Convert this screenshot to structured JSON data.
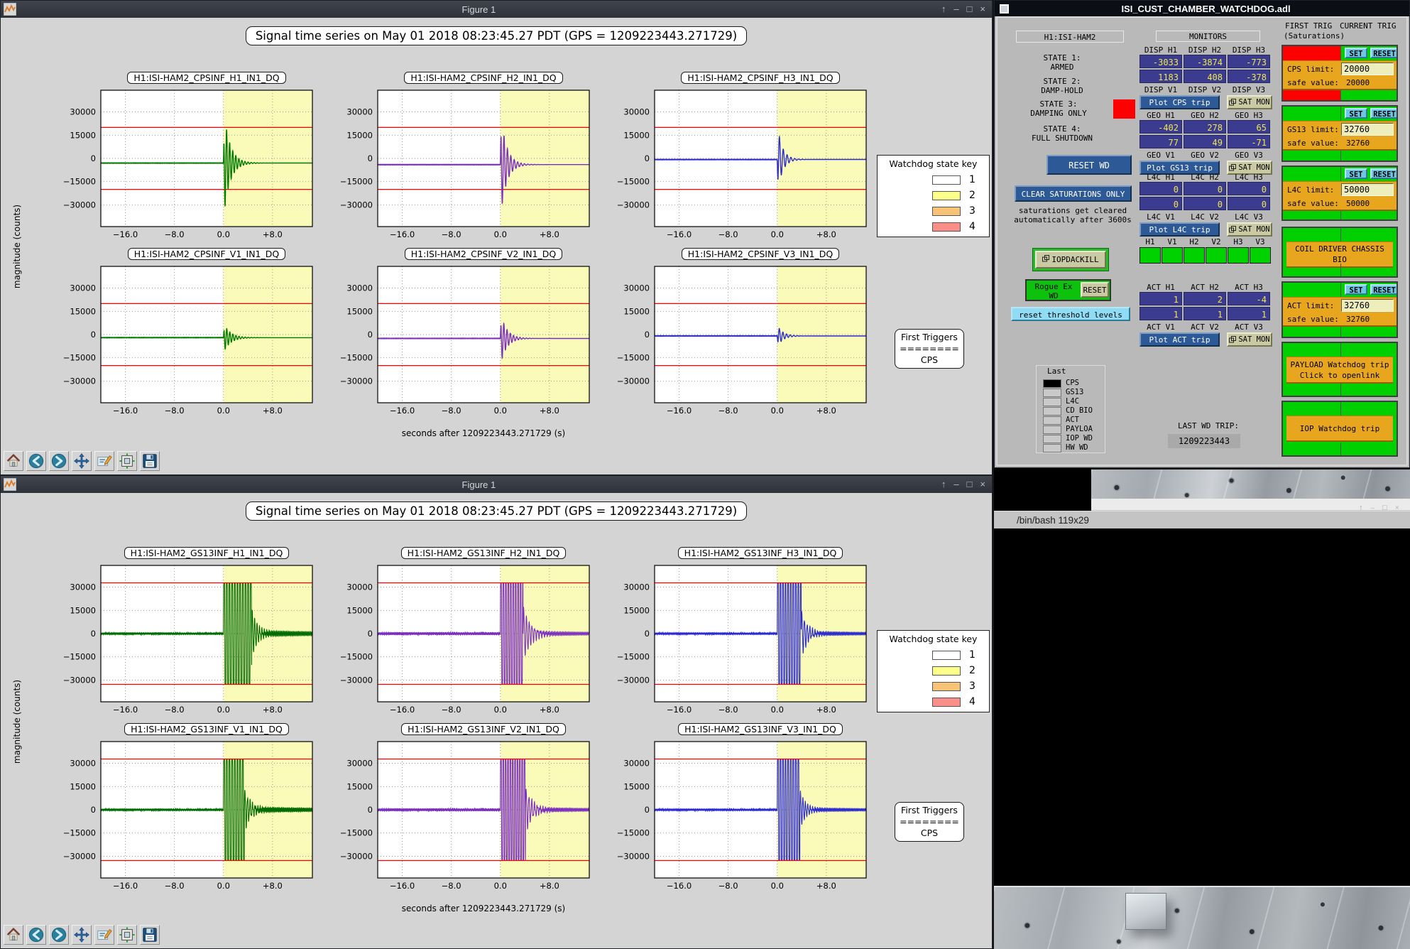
{
  "toolbar": {
    "icons": [
      "home",
      "back",
      "forward",
      "pan",
      "customize",
      "subplots",
      "save"
    ]
  },
  "windows": {
    "figure_top": {
      "title": "Figure 1",
      "buttons": [
        "↑",
        "–",
        "□",
        "×"
      ]
    },
    "figure_bottom": {
      "title": "Figure 1",
      "buttons": [
        "↑",
        "–",
        "□",
        "×"
      ]
    },
    "terminal": {
      "tab_title": "/bin/bash 119x29",
      "buttons": [
        "↑",
        "–",
        "□",
        "×"
      ]
    },
    "medm": {
      "title": "ISI_CUST_CHAMBER_WATCHDOG.adl",
      "header": "H1:ISI-HAM2",
      "states": [
        {
          "l1": "STATE 1:",
          "l2": "ARMED"
        },
        {
          "l1": "STATE 2:",
          "l2": "DAMP-HOLD"
        },
        {
          "l1": "STATE 3:",
          "l2": "DAMPING ONLY",
          "indicator": "#ff0000"
        },
        {
          "l1": "STATE 4:",
          "l2": "FULL SHUTDOWN"
        }
      ],
      "reset_wd": "RESET WD",
      "clear_saturations": "CLEAR SATURATIONS ONLY",
      "saturation_note": [
        "saturations get cleared",
        "automatically after 3600s"
      ],
      "iopdackill": "IOPDACKILL",
      "rogue": {
        "l1": "Rogue Ex",
        "l2": "WD",
        "reset": "RESET"
      },
      "reset_thresholds": "reset threshold levels",
      "last": {
        "title": "Last",
        "items": [
          "CPS",
          "GS13",
          "L4C",
          "CD BIO",
          "ACT",
          "PAYLOA",
          "IOP WD",
          "HW WD"
        ],
        "active_index": 0
      },
      "last_wd_trip": {
        "label": "LAST WD TRIP:",
        "value": "1209223443"
      },
      "monitors": {
        "title": "MONITORS",
        "groups": [
          {
            "labels": [
              "DISP H1",
              "DISP H2",
              "DISP H3"
            ],
            "row1": [
              "-3033",
              "-3874",
              "-773"
            ],
            "row2": [
              "1183",
              "408",
              "-378"
            ],
            "labels2": [
              "DISP V1",
              "DISP V2",
              "DISP V3"
            ],
            "plot": "Plot CPS trip",
            "sat": "SAT MON"
          },
          {
            "labels": [
              "GEO H1",
              "GEO H2",
              "GEO H3"
            ],
            "row1": [
              "-402",
              "278",
              "65"
            ],
            "row2": [
              "77",
              "49",
              "-71"
            ],
            "labels2": [
              "GEO V1",
              "GEO V2",
              "GEO V3"
            ],
            "plot": "Plot GS13 trip",
            "sat": "SAT MON"
          },
          {
            "labels": [
              "L4C H1",
              "L4C H2",
              "L4C H3"
            ],
            "row1": [
              "0",
              "0",
              "0"
            ],
            "row2": [
              "0",
              "0",
              "0"
            ],
            "labels2": [
              "L4C V1",
              "L4C V2",
              "L4C V3"
            ],
            "plot": "Plot L4C trip",
            "sat": "SAT MON"
          },
          {
            "labels": [
              "ACT H1",
              "ACT H2",
              "ACT H3"
            ],
            "row1": [
              "1",
              "2",
              "-4"
            ],
            "row2": [
              "1",
              "1",
              "1"
            ],
            "labels2": [
              "ACT V1",
              "ACT V2",
              "ACT V3"
            ],
            "plot": "Plot ACT trip",
            "sat": "SAT MON"
          }
        ],
        "hv_labels": [
          "H1",
          "V1",
          "H2",
          "V2",
          "H3",
          "V3"
        ]
      },
      "trig": {
        "header_first": "FIRST TRIG",
        "header_current": "CURRENT TRIG",
        "header_sub": "(Saturations)",
        "set_label": "SET",
        "reset_label": "RESET",
        "blocks": [
          {
            "kind": "limit",
            "name": "cps",
            "first_color": "#ff0000",
            "label": "CPS limit:",
            "value": "20000",
            "safe_label": "safe value:",
            "safe_value": "20000"
          },
          {
            "kind": "limit",
            "name": "gs13",
            "first_color": "#00cf00",
            "label": "GS13 limit:",
            "value": "32760",
            "safe_label": "safe value:",
            "safe_value": "32760"
          },
          {
            "kind": "limit",
            "name": "l4c",
            "first_color": "#00cf00",
            "label": "L4C limit:",
            "value": "50000",
            "safe_label": "safe value:",
            "safe_value": "50000"
          },
          {
            "kind": "banner",
            "name": "coil-driver",
            "lines": [
              "COIL DRIVER CHASSIS BIO"
            ]
          },
          {
            "kind": "limit",
            "name": "act",
            "first_color": "#00cf00",
            "label": "ACT limit:",
            "value": "32760",
            "safe_label": "safe value:",
            "safe_value": "32760"
          },
          {
            "kind": "banner",
            "name": "payload",
            "lines": [
              "PAYLOAD Watchdog trip",
              "Click to openlink"
            ]
          },
          {
            "kind": "banner",
            "name": "iop",
            "lines": [
              "IOP Watchdog trip"
            ]
          }
        ]
      }
    }
  },
  "chart_data": [
    {
      "figure": "top",
      "type": "line",
      "title": "Signal time series on May 01 2018 08:23:45.27 PDT (GPS = 1209223443.271729)",
      "xlabel": "seconds after 1209223443.271729 (s)",
      "ylabel": "magnitude (counts)",
      "xlim": [
        -20,
        14.5
      ],
      "ylim": [
        -44000,
        44000
      ],
      "xticks": [
        {
          "v": -16,
          "label": "−16.0"
        },
        {
          "v": -8,
          "label": "−8.0"
        },
        {
          "v": 0,
          "label": "0.0"
        },
        {
          "v": 8,
          "label": "+8.0"
        }
      ],
      "yticks": [
        {
          "v": 30000,
          "label": "30000"
        },
        {
          "v": 15000,
          "label": "15000"
        },
        {
          "v": 0,
          "label": "0"
        },
        {
          "v": -15000,
          "label": "−15000"
        },
        {
          "v": -30000,
          "label": "−30000"
        }
      ],
      "threshold": 20000,
      "shade_from": 0,
      "shade_color": "#fbfbb9",
      "grid": true,
      "legend": {
        "title": "Watchdog state key",
        "position": "right",
        "entries": [
          {
            "label": "1",
            "color": "#ffffff"
          },
          {
            "label": "2",
            "color": "#fdff8b"
          },
          {
            "label": "3",
            "color": "#f9c377"
          },
          {
            "label": "4",
            "color": "#f98f88"
          }
        ]
      },
      "first_triggers": [
        "First Triggers",
        "========",
        "CPS"
      ],
      "subplots": [
        {
          "title": "H1:ISI-HAM2_CPSINF_H1_IN1_DQ",
          "color": "#007a00",
          "waveform": {
            "kind": "ring",
            "baseline": -3000,
            "peak": 36000,
            "freq": 2.0,
            "decay": 1.0,
            "phase": 80,
            "noise": 120
          }
        },
        {
          "title": "H1:ISI-HAM2_CPSINF_H2_IN1_DQ",
          "color": "#7b2fbe",
          "waveform": {
            "kind": "ring",
            "baseline": -4000,
            "peak": 35000,
            "freq": 1.8,
            "decay": 0.95,
            "phase": 60,
            "noise": 120
          }
        },
        {
          "title": "H1:ISI-HAM2_CPSINF_H3_IN1_DQ",
          "color": "#2b2bd0",
          "waveform": {
            "kind": "ring",
            "baseline": -700,
            "peak": 23000,
            "freq": 1.6,
            "decay": 0.8,
            "phase": 240,
            "noise": 120
          }
        },
        {
          "title": "H1:ISI-HAM2_CPSINF_V1_IN1_DQ",
          "color": "#007a00",
          "waveform": {
            "kind": "ring",
            "baseline": -2000,
            "peak": 9500,
            "freq": 2.0,
            "decay": 1.1,
            "phase": 60,
            "noise": 120
          }
        },
        {
          "title": "H1:ISI-HAM2_CPSINF_V2_IN1_DQ",
          "color": "#7b2fbe",
          "waveform": {
            "kind": "ring",
            "baseline": -2500,
            "peak": 17000,
            "freq": 1.9,
            "decay": 1.0,
            "phase": 60,
            "noise": 120
          }
        },
        {
          "title": "H1:ISI-HAM2_CPSINF_V3_IN1_DQ",
          "color": "#2b2bd0",
          "waveform": {
            "kind": "ring",
            "baseline": -900,
            "peak": 7000,
            "freq": 1.7,
            "decay": 0.9,
            "phase": 240,
            "noise": 120
          }
        }
      ]
    },
    {
      "figure": "bottom",
      "type": "line",
      "title": "Signal time series on May 01 2018 08:23:45.27 PDT (GPS = 1209223443.271729)",
      "xlabel": "seconds after 1209223443.271729 (s)",
      "ylabel": "magnitude (counts)",
      "xlim": [
        -20,
        14.5
      ],
      "ylim": [
        -44000,
        44000
      ],
      "xticks": [
        {
          "v": -16,
          "label": "−16.0"
        },
        {
          "v": -8,
          "label": "−8.0"
        },
        {
          "v": 0,
          "label": "0.0"
        },
        {
          "v": 8,
          "label": "+8.0"
        }
      ],
      "yticks": [
        {
          "v": 30000,
          "label": "30000"
        },
        {
          "v": 15000,
          "label": "15000"
        },
        {
          "v": 0,
          "label": "0"
        },
        {
          "v": -15000,
          "label": "−15000"
        },
        {
          "v": -30000,
          "label": "−30000"
        }
      ],
      "threshold": 32760,
      "shade_from": 0,
      "shade_color": "#fbfbb9",
      "grid": true,
      "legend": {
        "title": "Watchdog state key",
        "position": "right",
        "entries": [
          {
            "label": "1",
            "color": "#ffffff"
          },
          {
            "label": "2",
            "color": "#fdff8b"
          },
          {
            "label": "3",
            "color": "#f9c377"
          },
          {
            "label": "4",
            "color": "#f98f88"
          }
        ]
      },
      "first_triggers": [
        "First Triggers",
        "========",
        "CPS"
      ],
      "subplots": [
        {
          "title": "H1:ISI-HAM2_GS13INF_H1_IN1_DQ",
          "color": "#006b00",
          "waveform": {
            "kind": "saturation",
            "clip": 32760,
            "sat_end": 4.6,
            "sat_freq": 2.3,
            "post_amp": 16000,
            "post_freq": 2.5,
            "post_decay": 0.9,
            "resid_amp": 2000,
            "resid_freq": 5.0,
            "noise": 500
          }
        },
        {
          "title": "H1:ISI-HAM2_GS13INF_H2_IN1_DQ",
          "color": "#7b2fbe",
          "waveform": {
            "kind": "saturation",
            "clip": 32760,
            "sat_end": 3.7,
            "sat_freq": 2.5,
            "post_amp": 18000,
            "post_freq": 2.2,
            "post_decay": 1.2,
            "resid_amp": 1600,
            "resid_freq": 4.5,
            "noise": 600
          }
        },
        {
          "title": "H1:ISI-HAM2_GS13INF_H3_IN1_DQ",
          "color": "#2b2bd0",
          "waveform": {
            "kind": "saturation",
            "clip": 32760,
            "sat_end": 3.9,
            "sat_freq": 2.4,
            "post_amp": 16000,
            "post_freq": 2.3,
            "post_decay": 1.0,
            "resid_amp": 1400,
            "resid_freq": 5.0,
            "noise": 500
          }
        },
        {
          "title": "H1:ISI-HAM2_GS13INF_V1_IN1_DQ",
          "color": "#006b00",
          "waveform": {
            "kind": "saturation",
            "clip": 32760,
            "sat_end": 3.4,
            "sat_freq": 2.3,
            "post_amp": 14000,
            "post_freq": 2.4,
            "post_decay": 1.0,
            "resid_amp": 1800,
            "resid_freq": 5.5,
            "noise": 500
          }
        },
        {
          "title": "H1:ISI-HAM2_GS13INF_V2_IN1_DQ",
          "color": "#7b2fbe",
          "waveform": {
            "kind": "saturation",
            "clip": 32760,
            "sat_end": 4.1,
            "sat_freq": 2.6,
            "post_amp": 15000,
            "post_freq": 2.2,
            "post_decay": 1.1,
            "resid_amp": 1500,
            "resid_freq": 5.0,
            "noise": 600
          }
        },
        {
          "title": "H1:ISI-HAM2_GS13INF_V3_IN1_DQ",
          "color": "#2b2bd0",
          "waveform": {
            "kind": "saturation",
            "clip": 32760,
            "sat_end": 3.7,
            "sat_freq": 2.4,
            "post_amp": 13000,
            "post_freq": 2.5,
            "post_decay": 0.9,
            "resid_amp": 1300,
            "resid_freq": 5.0,
            "noise": 500
          }
        }
      ]
    }
  ]
}
